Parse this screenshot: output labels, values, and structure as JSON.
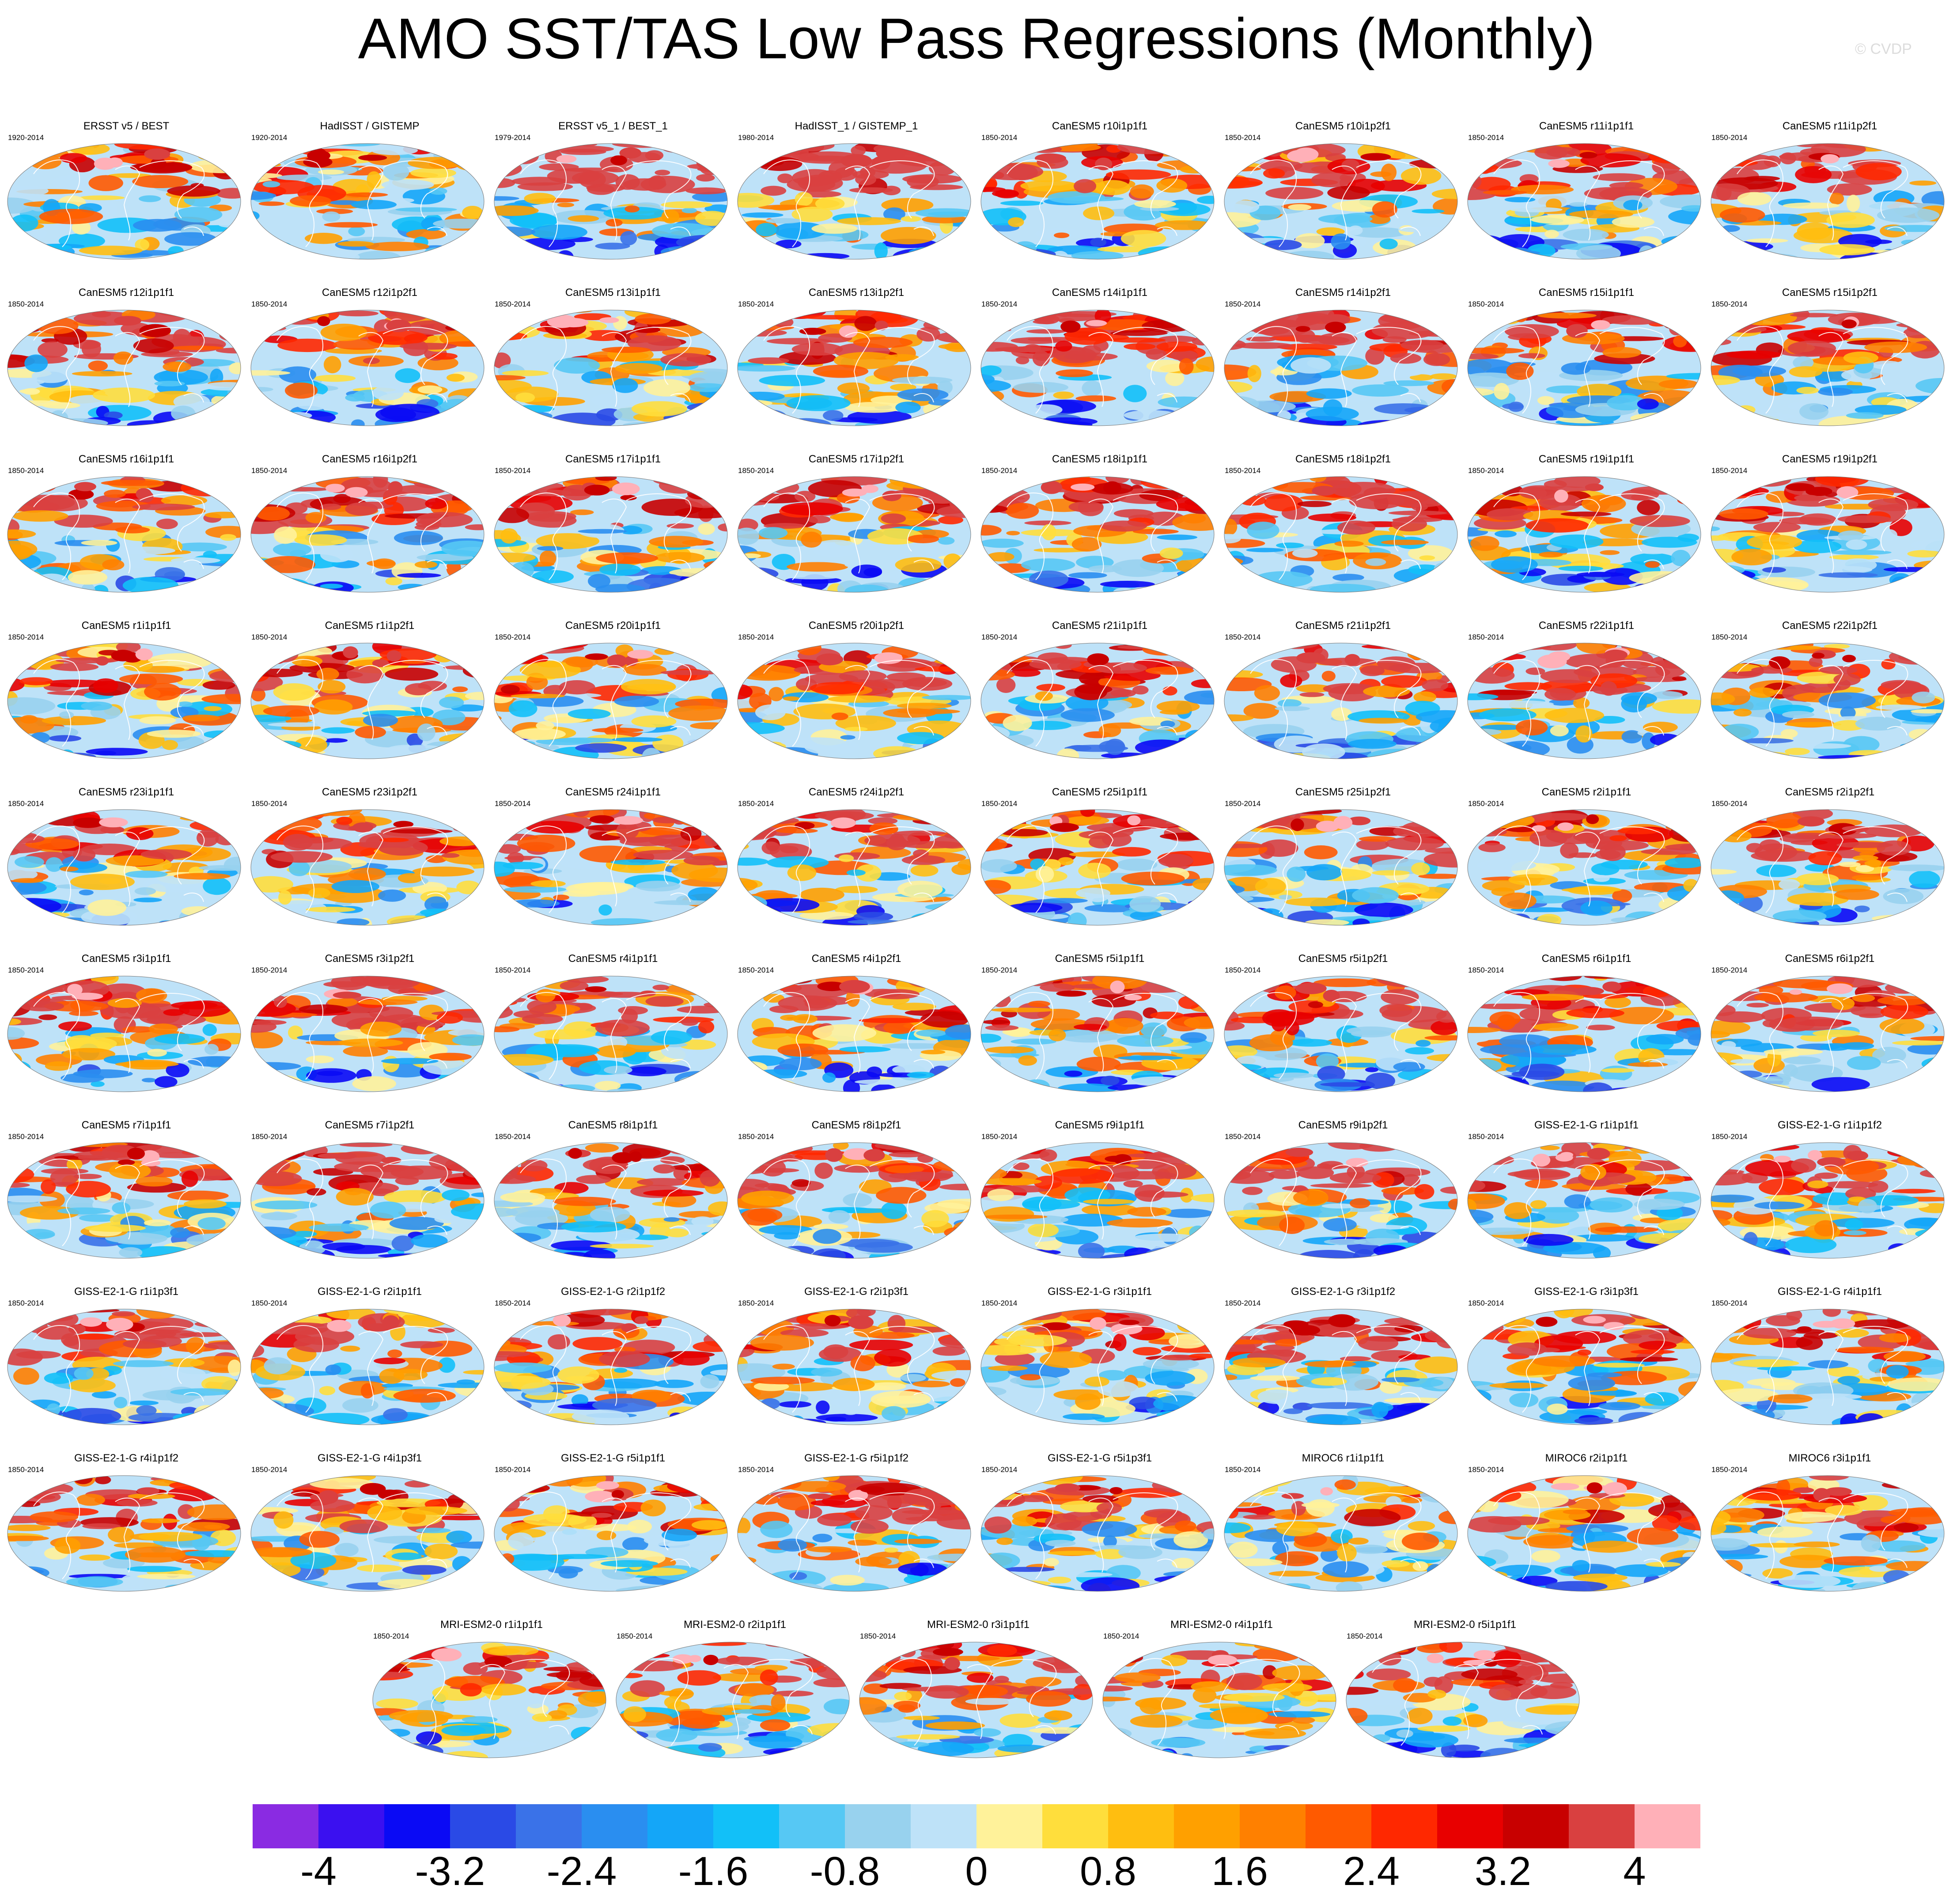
{
  "title": "AMO SST/TAS Low Pass Regressions (Monthly)",
  "copyright": "© CVDP",
  "chart_data": {
    "type": "heatmap",
    "title": "AMO SST/TAS Low Pass Regressions (Monthly)",
    "description_type": "map-panels",
    "colorbar": {
      "levels": [
        -4.4,
        -4,
        -3.6,
        -3.2,
        -2.8,
        -2.4,
        -2,
        -1.6,
        -1.2,
        -0.8,
        -0.4,
        0,
        0.4,
        0.8,
        1.2,
        1.6,
        2,
        2.4,
        2.8,
        3.2,
        3.6,
        4,
        4.4
      ],
      "tick_labels": [
        "-4",
        "-3.2",
        "-2.4",
        "-1.6",
        "-0.8",
        "0",
        "0.8",
        "1.6",
        "2.4",
        "3.2",
        "4"
      ],
      "tick_values": [
        -4,
        -3.2,
        -2.4,
        -1.6,
        -0.8,
        0,
        0.8,
        1.6,
        2.4,
        3.2,
        4
      ],
      "colors": [
        "#8a2be2",
        "#3b10f0",
        "#0a0af5",
        "#2a4ae6",
        "#3a72e8",
        "#2a8ef0",
        "#14a6f8",
        "#12c0f8",
        "#56c8f4",
        "#98d2ee",
        "#bee2f8",
        "#fff29a",
        "#ffde3c",
        "#ffbe10",
        "#ffa000",
        "#ff8000",
        "#ff5a00",
        "#ff2800",
        "#e80000",
        "#c80000",
        "#d94040",
        "#ffb0b8"
      ]
    },
    "panels": [
      {
        "name": "ERSST v5 / BEST",
        "period": "1920-2014",
        "amp": 0.2,
        "seed": 3,
        "style": "obs"
      },
      {
        "name": "HadISST / GISTEMP",
        "period": "1920-2014",
        "amp": 0.1,
        "seed": 7,
        "style": "obs"
      },
      {
        "name": "ERSST v5_1 / BEST_1",
        "period": "1979-2014",
        "amp": 0.85,
        "seed": 11,
        "style": "warm"
      },
      {
        "name": "HadISST_1 / GISTEMP_1",
        "period": "1980-2014",
        "amp": 0.7,
        "seed": 13,
        "style": "warm"
      },
      {
        "name": "CanESM5 r10i1p1f1",
        "period": "1850-2014",
        "amp": 0.4,
        "seed": 17
      },
      {
        "name": "CanESM5 r10i1p2f1",
        "period": "1850-2014",
        "amp": 0.4,
        "seed": 19
      },
      {
        "name": "CanESM5 r11i1p1f1",
        "period": "1850-2014",
        "amp": 0.5,
        "seed": 23
      },
      {
        "name": "CanESM5 r11i1p2f1",
        "period": "1850-2014",
        "amp": 0.45,
        "seed": 29
      },
      {
        "name": "CanESM5 r12i1p1f1",
        "period": "1850-2014",
        "amp": 0.5,
        "seed": 31
      },
      {
        "name": "CanESM5 r12i1p2f1",
        "period": "1850-2014",
        "amp": 0.4,
        "seed": 37
      },
      {
        "name": "CanESM5 r13i1p1f1",
        "period": "1850-2014",
        "amp": 0.3,
        "seed": 41
      },
      {
        "name": "CanESM5 r13i1p2f1",
        "period": "1850-2014",
        "amp": 0.45,
        "seed": 43
      },
      {
        "name": "CanESM5 r14i1p1f1",
        "period": "1850-2014",
        "amp": 0.55,
        "seed": 47
      },
      {
        "name": "CanESM5 r14i1p2f1",
        "period": "1850-2014",
        "amp": 0.55,
        "seed": 53
      },
      {
        "name": "CanESM5 r15i1p1f1",
        "period": "1850-2014",
        "amp": 0.4,
        "seed": 59
      },
      {
        "name": "CanESM5 r15i1p2f1",
        "period": "1850-2014",
        "amp": 0.4,
        "seed": 61
      },
      {
        "name": "CanESM5 r16i1p1f1",
        "period": "1850-2014",
        "amp": 0.45,
        "seed": 67
      },
      {
        "name": "CanESM5 r16i1p2f1",
        "period": "1850-2014",
        "amp": 0.45,
        "seed": 71
      },
      {
        "name": "CanESM5 r17i1p1f1",
        "period": "1850-2014",
        "amp": 0.5,
        "seed": 73
      },
      {
        "name": "CanESM5 r17i1p2f1",
        "period": "1850-2014",
        "amp": 0.45,
        "seed": 79
      },
      {
        "name": "CanESM5 r18i1p1f1",
        "period": "1850-2014",
        "amp": 0.5,
        "seed": 83
      },
      {
        "name": "CanESM5 r18i1p2f1",
        "period": "1850-2014",
        "amp": 0.5,
        "seed": 89
      },
      {
        "name": "CanESM5 r19i1p1f1",
        "period": "1850-2014",
        "amp": 0.35,
        "seed": 97
      },
      {
        "name": "CanESM5 r19i1p2f1",
        "period": "1850-2014",
        "amp": 0.45,
        "seed": 101
      },
      {
        "name": "CanESM5 r1i1p1f1",
        "period": "1850-2014",
        "amp": 0.3,
        "seed": 103
      },
      {
        "name": "CanESM5 r1i1p2f1",
        "period": "1850-2014",
        "amp": 0.3,
        "seed": 107
      },
      {
        "name": "CanESM5 r20i1p1f1",
        "period": "1850-2014",
        "amp": 0.35,
        "seed": 109
      },
      {
        "name": "CanESM5 r20i1p2f1",
        "period": "1850-2014",
        "amp": 0.4,
        "seed": 113
      },
      {
        "name": "CanESM5 r21i1p1f1",
        "period": "1850-2014",
        "amp": 0.55,
        "seed": 127
      },
      {
        "name": "CanESM5 r21i1p2f1",
        "period": "1850-2014",
        "amp": 0.4,
        "seed": 131
      },
      {
        "name": "CanESM5 r22i1p1f1",
        "period": "1850-2014",
        "amp": 0.5,
        "seed": 137
      },
      {
        "name": "CanESM5 r22i1p2f1",
        "period": "1850-2014",
        "amp": 0.35,
        "seed": 139
      },
      {
        "name": "CanESM5 r23i1p1f1",
        "period": "1850-2014",
        "amp": 0.45,
        "seed": 149
      },
      {
        "name": "CanESM5 r23i1p2f1",
        "period": "1850-2014",
        "amp": 0.45,
        "seed": 151
      },
      {
        "name": "CanESM5 r24i1p1f1",
        "period": "1850-2014",
        "amp": 0.45,
        "seed": 157
      },
      {
        "name": "CanESM5 r24i1p2f1",
        "period": "1850-2014",
        "amp": 0.35,
        "seed": 163
      },
      {
        "name": "CanESM5 r25i1p1f1",
        "period": "1850-2014",
        "amp": 0.35,
        "seed": 167
      },
      {
        "name": "CanESM5 r25i1p2f1",
        "period": "1850-2014",
        "amp": 0.4,
        "seed": 173
      },
      {
        "name": "CanESM5 r2i1p1f1",
        "period": "1850-2014",
        "amp": 0.4,
        "seed": 179
      },
      {
        "name": "CanESM5 r2i1p2f1",
        "period": "1850-2014",
        "amp": 0.45,
        "seed": 181
      },
      {
        "name": "CanESM5 r3i1p1f1",
        "period": "1850-2014",
        "amp": 0.4,
        "seed": 191
      },
      {
        "name": "CanESM5 r3i1p2f1",
        "period": "1850-2014",
        "amp": 0.45,
        "seed": 193
      },
      {
        "name": "CanESM5 r4i1p1f1",
        "period": "1850-2014",
        "amp": 0.45,
        "seed": 197
      },
      {
        "name": "CanESM5 r4i1p2f1",
        "period": "1850-2014",
        "amp": 0.4,
        "seed": 199
      },
      {
        "name": "CanESM5 r5i1p1f1",
        "period": "1850-2014",
        "amp": 0.45,
        "seed": 211
      },
      {
        "name": "CanESM5 r5i1p2f1",
        "period": "1850-2014",
        "amp": 0.45,
        "seed": 223
      },
      {
        "name": "CanESM5 r6i1p1f1",
        "period": "1850-2014",
        "amp": 0.35,
        "seed": 227
      },
      {
        "name": "CanESM5 r6i1p2f1",
        "period": "1850-2014",
        "amp": 0.45,
        "seed": 229
      },
      {
        "name": "CanESM5 r7i1p1f1",
        "period": "1850-2014",
        "amp": 0.4,
        "seed": 233
      },
      {
        "name": "CanESM5 r7i1p2f1",
        "period": "1850-2014",
        "amp": 0.5,
        "seed": 239
      },
      {
        "name": "CanESM5 r8i1p1f1",
        "period": "1850-2014",
        "amp": 0.45,
        "seed": 241
      },
      {
        "name": "CanESM5 r8i1p2f1",
        "period": "1850-2014",
        "amp": 0.45,
        "seed": 251
      },
      {
        "name": "CanESM5 r9i1p1f1",
        "period": "1850-2014",
        "amp": 0.45,
        "seed": 257
      },
      {
        "name": "CanESM5 r9i1p2f1",
        "period": "1850-2014",
        "amp": 0.55,
        "seed": 263
      },
      {
        "name": "GISS-E2-1-G r1i1p1f1",
        "period": "1850-2014",
        "amp": 0.4,
        "seed": 269
      },
      {
        "name": "GISS-E2-1-G r1i1p1f2",
        "period": "1850-2014",
        "amp": 0.4,
        "seed": 271
      },
      {
        "name": "GISS-E2-1-G r1i1p3f1",
        "period": "1850-2014",
        "amp": 0.5,
        "seed": 277
      },
      {
        "name": "GISS-E2-1-G r2i1p1f1",
        "period": "1850-2014",
        "amp": 0.35,
        "seed": 281
      },
      {
        "name": "GISS-E2-1-G r2i1p1f2",
        "period": "1850-2014",
        "amp": 0.45,
        "seed": 283
      },
      {
        "name": "GISS-E2-1-G r2i1p3f1",
        "period": "1850-2014",
        "amp": 0.4,
        "seed": 293
      },
      {
        "name": "GISS-E2-1-G r3i1p1f1",
        "period": "1850-2014",
        "amp": 0.3,
        "seed": 307
      },
      {
        "name": "GISS-E2-1-G r3i1p1f2",
        "period": "1850-2014",
        "amp": 0.45,
        "seed": 311
      },
      {
        "name": "GISS-E2-1-G r3i1p3f1",
        "period": "1850-2014",
        "amp": 0.4,
        "seed": 313
      },
      {
        "name": "GISS-E2-1-G r4i1p1f1",
        "period": "1850-2014",
        "amp": 0.4,
        "seed": 317
      },
      {
        "name": "GISS-E2-1-G r4i1p1f2",
        "period": "1850-2014",
        "amp": 0.45,
        "seed": 331
      },
      {
        "name": "GISS-E2-1-G r4i1p3f1",
        "period": "1850-2014",
        "amp": 0.3,
        "seed": 337
      },
      {
        "name": "GISS-E2-1-G r5i1p1f1",
        "period": "1850-2014",
        "amp": 0.3,
        "seed": 347
      },
      {
        "name": "GISS-E2-1-G r5i1p1f2",
        "period": "1850-2014",
        "amp": 0.45,
        "seed": 349
      },
      {
        "name": "GISS-E2-1-G r5i1p3f1",
        "period": "1850-2014",
        "amp": 0.35,
        "seed": 353
      },
      {
        "name": "MIROC6 r1i1p1f1",
        "period": "1850-2014",
        "amp": 0.2,
        "seed": 359
      },
      {
        "name": "MIROC6 r2i1p1f1",
        "period": "1850-2014",
        "amp": 0.3,
        "seed": 367
      },
      {
        "name": "MIROC6 r3i1p1f1",
        "period": "1850-2014",
        "amp": 0.25,
        "seed": 373
      },
      {
        "name": "MRI-ESM2-0 r1i1p1f1",
        "period": "1850-2014",
        "amp": 0.35,
        "seed": 379
      },
      {
        "name": "MRI-ESM2-0 r2i1p1f1",
        "period": "1850-2014",
        "amp": 0.45,
        "seed": 383
      },
      {
        "name": "MRI-ESM2-0 r3i1p1f1",
        "period": "1850-2014",
        "amp": 0.45,
        "seed": 389
      },
      {
        "name": "MRI-ESM2-0 r4i1p1f1",
        "period": "1850-2014",
        "amp": 0.4,
        "seed": 397
      },
      {
        "name": "MRI-ESM2-0 r5i1p1f1",
        "period": "1850-2014",
        "amp": 0.5,
        "seed": 401
      }
    ]
  }
}
